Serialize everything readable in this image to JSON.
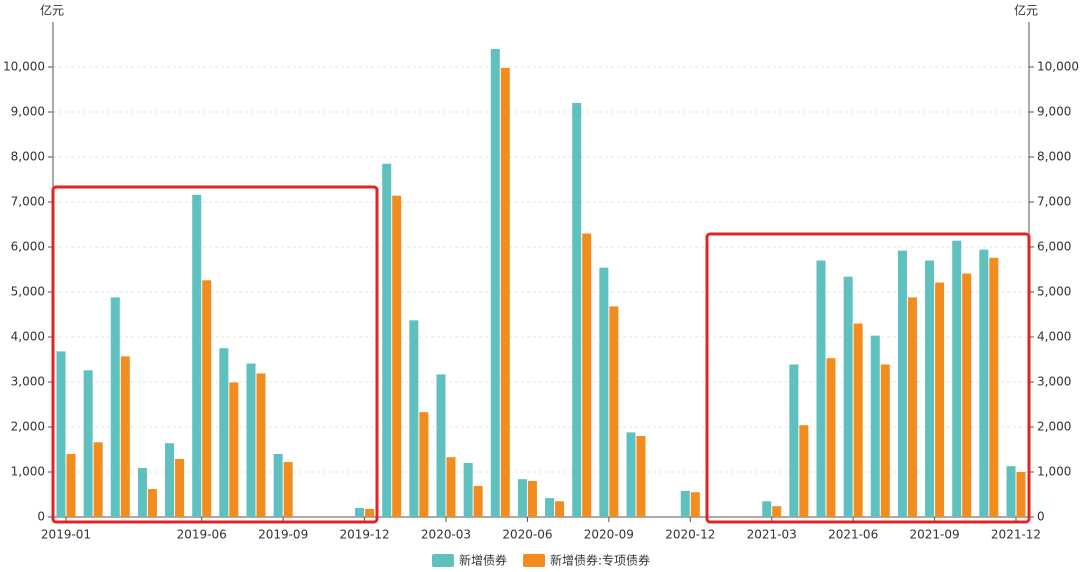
{
  "chart_data": {
    "type": "bar",
    "y_label": "亿元",
    "y2_label": "亿元",
    "categories": [
      "2019-01",
      null,
      null,
      null,
      null,
      "2019-06",
      null,
      null,
      "2019-09",
      null,
      null,
      "2019-12",
      null,
      null,
      "2020-03",
      null,
      null,
      "2020-06",
      null,
      null,
      "2020-09",
      null,
      null,
      "2020-12",
      null,
      null,
      "2021-03",
      null,
      null,
      "2021-06",
      null,
      null,
      "2021-09",
      null,
      null,
      "2021-12"
    ],
    "series": [
      {
        "name": "新增债券",
        "color": "#5fc0c0",
        "values": [
          3680,
          3260,
          4880,
          1090,
          1640,
          7160,
          3750,
          3410,
          1400,
          0,
          0,
          200,
          7850,
          4370,
          3170,
          1200,
          10400,
          840,
          420,
          9200,
          5540,
          1880,
          0,
          580,
          0,
          0,
          350,
          3390,
          5700,
          5340,
          4030,
          5920,
          5700,
          6140,
          5940,
          1130
        ]
      },
      {
        "name": "新增债券:专项债券",
        "color": "#f28c1e",
        "values": [
          1400,
          1660,
          3570,
          620,
          1290,
          5260,
          2990,
          3190,
          1220,
          0,
          0,
          180,
          7140,
          2330,
          1330,
          690,
          9980,
          800,
          350,
          6300,
          4680,
          1800,
          0,
          550,
          0,
          0,
          240,
          2040,
          3530,
          4300,
          3390,
          4880,
          5210,
          5410,
          5760,
          1000
        ]
      }
    ],
    "ylim": [
      0,
      11000
    ],
    "yticks": [
      0,
      {
        "value": 1000,
        "label": "1,000"
      },
      {
        "value": 2000,
        "label": "2,000"
      },
      {
        "value": 3000,
        "label": "3,000"
      },
      {
        "value": 4000,
        "label": "4,000"
      },
      {
        "value": 5000,
        "label": "5,000"
      },
      {
        "value": 6000,
        "label": "6,000"
      },
      {
        "value": 7000,
        "label": "7,000"
      },
      {
        "value": 8000,
        "label": "8,000"
      },
      {
        "value": 9000,
        "label": "9,000"
      },
      {
        "value": 10000,
        "label": "10,000"
      }
    ],
    "y2lim": [
      0,
      11000
    ],
    "y2ticks": [
      0,
      {
        "value": 1000,
        "label": "1,000"
      },
      {
        "value": 2000,
        "label": "2,000"
      },
      {
        "value": 3000,
        "label": "3,000"
      },
      {
        "value": 4000,
        "label": "4,000"
      },
      {
        "value": 5000,
        "label": "5,000"
      },
      {
        "value": 6000,
        "label": "6,000"
      },
      {
        "value": 7000,
        "label": "7,000"
      },
      {
        "value": 8000,
        "label": "8,000"
      },
      {
        "value": 9000,
        "label": "9,000"
      },
      {
        "value": 10000,
        "label": "10,000"
      }
    ],
    "grid": true
  }
}
